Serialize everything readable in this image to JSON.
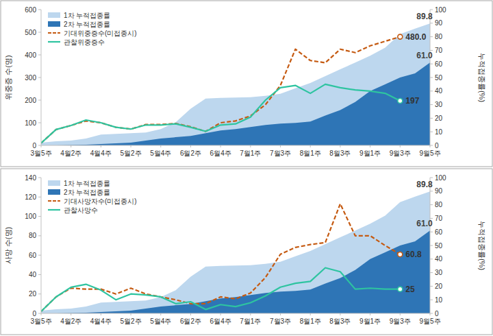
{
  "chart_data": [
    {
      "type": "combo",
      "categories": [
        "3월5주",
        null,
        "4월2주",
        null,
        "4월4주",
        null,
        "5월2주",
        null,
        "5월4주",
        null,
        "6월2주",
        null,
        "6월4주",
        null,
        "7월1주",
        null,
        "7월3주",
        null,
        "8월1주",
        null,
        "8월3주",
        null,
        "9월1주",
        null,
        "9월3주",
        null,
        "9월5주"
      ],
      "y_label": "위중증 수(명)",
      "y2_label": "누적접종률(%)",
      "ylim": [
        0,
        600
      ],
      "yticks": [
        0,
        100,
        200,
        300,
        400,
        500,
        600
      ],
      "y2lim": [
        0,
        100
      ],
      "y2ticks": [
        0,
        10,
        20,
        30,
        40,
        50,
        60,
        70,
        80,
        90,
        100
      ],
      "grid": false,
      "legend": "top-left",
      "stacked": false,
      "series": [
        {
          "name": "1차 누적접종률",
          "type": "area",
          "axis": "y2",
          "color": "#bdd7ee",
          "values": [
            2,
            3,
            3.5,
            5,
            8,
            8.5,
            9,
            9.5,
            12,
            17,
            27,
            34.5,
            35,
            35.2,
            35.5,
            36.5,
            38,
            42,
            46,
            51,
            56,
            61,
            66,
            72,
            82,
            86,
            89.8
          ],
          "value_labels": [
            null,
            null,
            null,
            null,
            null,
            null,
            null,
            null,
            null,
            null,
            null,
            null,
            null,
            null,
            null,
            null,
            null,
            null,
            null,
            null,
            null,
            null,
            null,
            null,
            null,
            null,
            "89.8"
          ]
        },
        {
          "name": "2차 누적접종률",
          "type": "area",
          "axis": "y2",
          "color": "#2e75b6",
          "values": [
            0,
            0,
            0.2,
            0.5,
            1,
            1.5,
            2,
            3.5,
            5,
            6,
            7,
            9,
            11,
            12,
            13.5,
            15,
            16,
            16.5,
            17.5,
            22,
            26,
            32,
            40,
            45,
            50,
            53,
            61.0
          ],
          "value_labels": [
            null,
            null,
            null,
            null,
            null,
            null,
            null,
            null,
            null,
            null,
            null,
            null,
            null,
            null,
            null,
            null,
            null,
            null,
            null,
            null,
            null,
            null,
            null,
            null,
            null,
            null,
            "61.0"
          ]
        },
        {
          "name": "기대위중증수(미접종시)",
          "type": "line",
          "color": "#c55a11",
          "line_style": "dashed",
          "marker": "circle",
          "values": [
            10,
            70,
            88,
            108,
            100,
            80,
            72,
            92,
            92,
            97,
            82,
            62,
            100,
            108,
            130,
            180,
            265,
            425,
            375,
            365,
            425,
            410,
            440,
            460,
            480,
            null,
            null
          ],
          "value_labels": [
            null,
            null,
            null,
            null,
            null,
            null,
            null,
            null,
            null,
            null,
            null,
            null,
            null,
            null,
            null,
            null,
            null,
            null,
            null,
            null,
            null,
            null,
            null,
            null,
            "480.0",
            null,
            null
          ]
        },
        {
          "name": "관찰위중증수",
          "type": "line",
          "color": "#2ec4a0",
          "line_style": "solid",
          "marker": "circle",
          "values": [
            10,
            70,
            88,
            112,
            100,
            80,
            72,
            90,
            90,
            95,
            80,
            62,
            90,
            95,
            125,
            200,
            255,
            265,
            230,
            270,
            255,
            245,
            240,
            230,
            197,
            null,
            null
          ],
          "value_labels": [
            null,
            null,
            null,
            null,
            null,
            null,
            null,
            null,
            null,
            null,
            null,
            null,
            null,
            null,
            null,
            null,
            null,
            null,
            null,
            null,
            null,
            null,
            null,
            null,
            "197",
            null,
            null
          ]
        }
      ]
    },
    {
      "type": "combo",
      "categories": [
        "3월5주",
        null,
        "4월2주",
        null,
        "4월4주",
        null,
        "5월2주",
        null,
        "5월4주",
        null,
        "6월2주",
        null,
        "6월4주",
        null,
        "7월1주",
        null,
        "7월3주",
        null,
        "8월1주",
        null,
        "8월3주",
        null,
        "9월1주",
        null,
        "9월3주",
        null,
        "9월5주"
      ],
      "y_label": "사망 수(명)",
      "y2_label": "누적접종률(%)",
      "ylim": [
        0,
        140
      ],
      "yticks": [
        0,
        20,
        40,
        60,
        80,
        100,
        120,
        140
      ],
      "y2lim": [
        0,
        100
      ],
      "y2ticks": [
        0,
        10,
        20,
        30,
        40,
        50,
        60,
        70,
        80,
        90,
        100
      ],
      "grid": false,
      "legend": "top-left",
      "stacked": false,
      "series": [
        {
          "name": "1차 누적접종률",
          "type": "area",
          "axis": "y2",
          "color": "#bdd7ee",
          "values": [
            2,
            3,
            3.5,
            5,
            8,
            8.5,
            9,
            9.5,
            12,
            17,
            27,
            34.5,
            35,
            35.2,
            35.5,
            36.5,
            38,
            42,
            46,
            51,
            56,
            61,
            66,
            72,
            82,
            86,
            89.8
          ],
          "value_labels": [
            null,
            null,
            null,
            null,
            null,
            null,
            null,
            null,
            null,
            null,
            null,
            null,
            null,
            null,
            null,
            null,
            null,
            null,
            null,
            null,
            null,
            null,
            null,
            null,
            null,
            null,
            "89.8"
          ]
        },
        {
          "name": "2차 누적접종률",
          "type": "area",
          "axis": "y2",
          "color": "#2e75b6",
          "values": [
            0,
            0,
            0.2,
            0.5,
            1,
            1.5,
            2,
            3.5,
            5,
            6,
            7,
            9,
            11,
            12,
            13.5,
            15,
            16,
            16.5,
            17.5,
            22,
            26,
            32,
            40,
            45,
            50,
            53,
            61.0
          ],
          "value_labels": [
            null,
            null,
            null,
            null,
            null,
            null,
            null,
            null,
            null,
            null,
            null,
            null,
            null,
            null,
            null,
            null,
            null,
            null,
            null,
            null,
            null,
            null,
            null,
            null,
            null,
            null,
            "61.0"
          ]
        },
        {
          "name": "기대사망자수(미접종시)",
          "type": "line",
          "color": "#c55a11",
          "line_style": "dashed",
          "marker": "circle",
          "values": [
            2,
            17,
            26,
            25,
            25,
            20,
            26,
            20,
            17,
            14,
            10,
            10,
            17,
            15,
            21,
            37,
            61,
            68,
            71,
            73,
            113,
            80,
            80,
            70,
            60.8,
            null,
            null
          ],
          "value_labels": [
            null,
            null,
            null,
            null,
            null,
            null,
            null,
            null,
            null,
            null,
            null,
            null,
            null,
            null,
            null,
            null,
            null,
            null,
            null,
            null,
            null,
            null,
            null,
            null,
            "60.8",
            null,
            null
          ]
        },
        {
          "name": "관찰사망수",
          "type": "line",
          "color": "#2ec4a0",
          "line_style": "solid",
          "marker": "circle",
          "values": [
            2,
            17,
            27,
            30,
            24,
            14,
            20,
            19,
            17,
            10,
            12,
            4,
            9,
            7,
            11,
            18,
            27,
            31,
            33,
            47,
            43,
            25,
            26,
            25,
            25,
            null,
            null
          ],
          "value_labels": [
            null,
            null,
            null,
            null,
            null,
            null,
            null,
            null,
            null,
            null,
            null,
            null,
            null,
            null,
            null,
            null,
            null,
            null,
            null,
            null,
            null,
            null,
            null,
            null,
            "25",
            null,
            null
          ]
        }
      ]
    }
  ]
}
